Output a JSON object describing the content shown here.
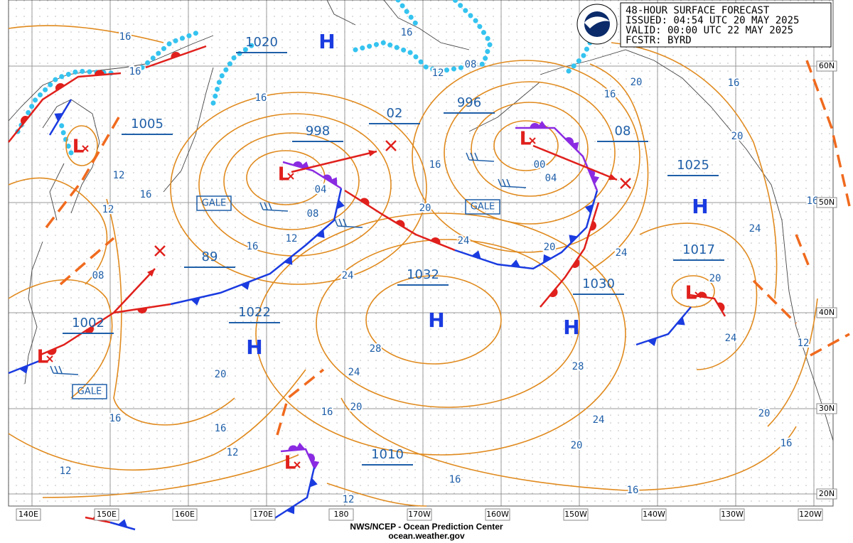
{
  "header": {
    "lines": [
      "48-HOUR SURFACE FORECAST",
      "ISSUED: 04:54 UTC 20 MAY 2025",
      "VALID:  00:00 UTC 22 MAY 2025",
      "FCSTR: BYRD"
    ]
  },
  "footer": {
    "lines": [
      "NWS/NCEP - Ocean Prediction Center",
      "ocean.weather.gov"
    ]
  },
  "longitude_labels": [
    "140E",
    "150E",
    "160E",
    "170E",
    "180",
    "170W",
    "160W",
    "150W",
    "140W",
    "130W",
    "120W"
  ],
  "latitude_labels": [
    "60N",
    "50N",
    "40N",
    "30N",
    "20N"
  ],
  "pressure_labels": [
    "1020",
    "1005",
    "998",
    "02",
    "996",
    "08",
    "1025",
    "1017",
    "1030",
    "1032",
    "89",
    "1022",
    "1002",
    "1010"
  ],
  "highs": [
    "H",
    "H",
    "H",
    "H",
    "H"
  ],
  "lows": [
    "L",
    "L",
    "L",
    "L",
    "L",
    "L"
  ],
  "gale_labels": [
    "GALE",
    "GALE",
    "GALE"
  ],
  "isobar_labels": [
    "16",
    "16",
    "16",
    "16",
    "16",
    "16",
    "16",
    "16",
    "16",
    "16",
    "16",
    "16",
    "16",
    "16",
    "16",
    "16",
    "12",
    "12",
    "12",
    "12",
    "12",
    "12",
    "12",
    "12",
    "08",
    "08",
    "08",
    "04",
    "04",
    "00",
    "20",
    "20",
    "20",
    "20",
    "20",
    "20",
    "20",
    "20",
    "20",
    "24",
    "24",
    "24",
    "24",
    "24",
    "24",
    "24",
    "28",
    "28"
  ]
}
